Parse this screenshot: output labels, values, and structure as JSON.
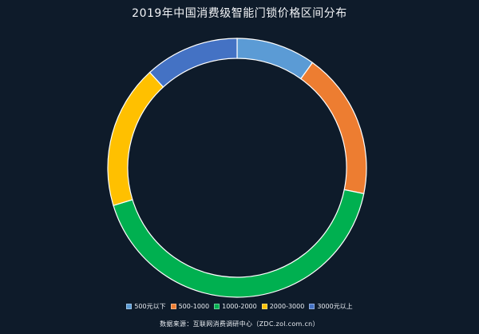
{
  "chart_data": {
    "type": "pie",
    "title": "2019年中国消费级智能门锁价格区间分布",
    "categories": [
      "500元以下",
      "500-1000",
      "1000-2000",
      "2000-3000",
      "3000元以上"
    ],
    "values": [
      9.9,
      18.3,
      42.1,
      17.9,
      11.8
    ],
    "colors": [
      "#5b9bd5",
      "#ed7d31",
      "#00b050",
      "#ffc000",
      "#4472c4"
    ],
    "donut": true,
    "legend": "bottom",
    "source": "数据来源：互联网消费调研中心（ZDC.zol.com.cn）"
  }
}
